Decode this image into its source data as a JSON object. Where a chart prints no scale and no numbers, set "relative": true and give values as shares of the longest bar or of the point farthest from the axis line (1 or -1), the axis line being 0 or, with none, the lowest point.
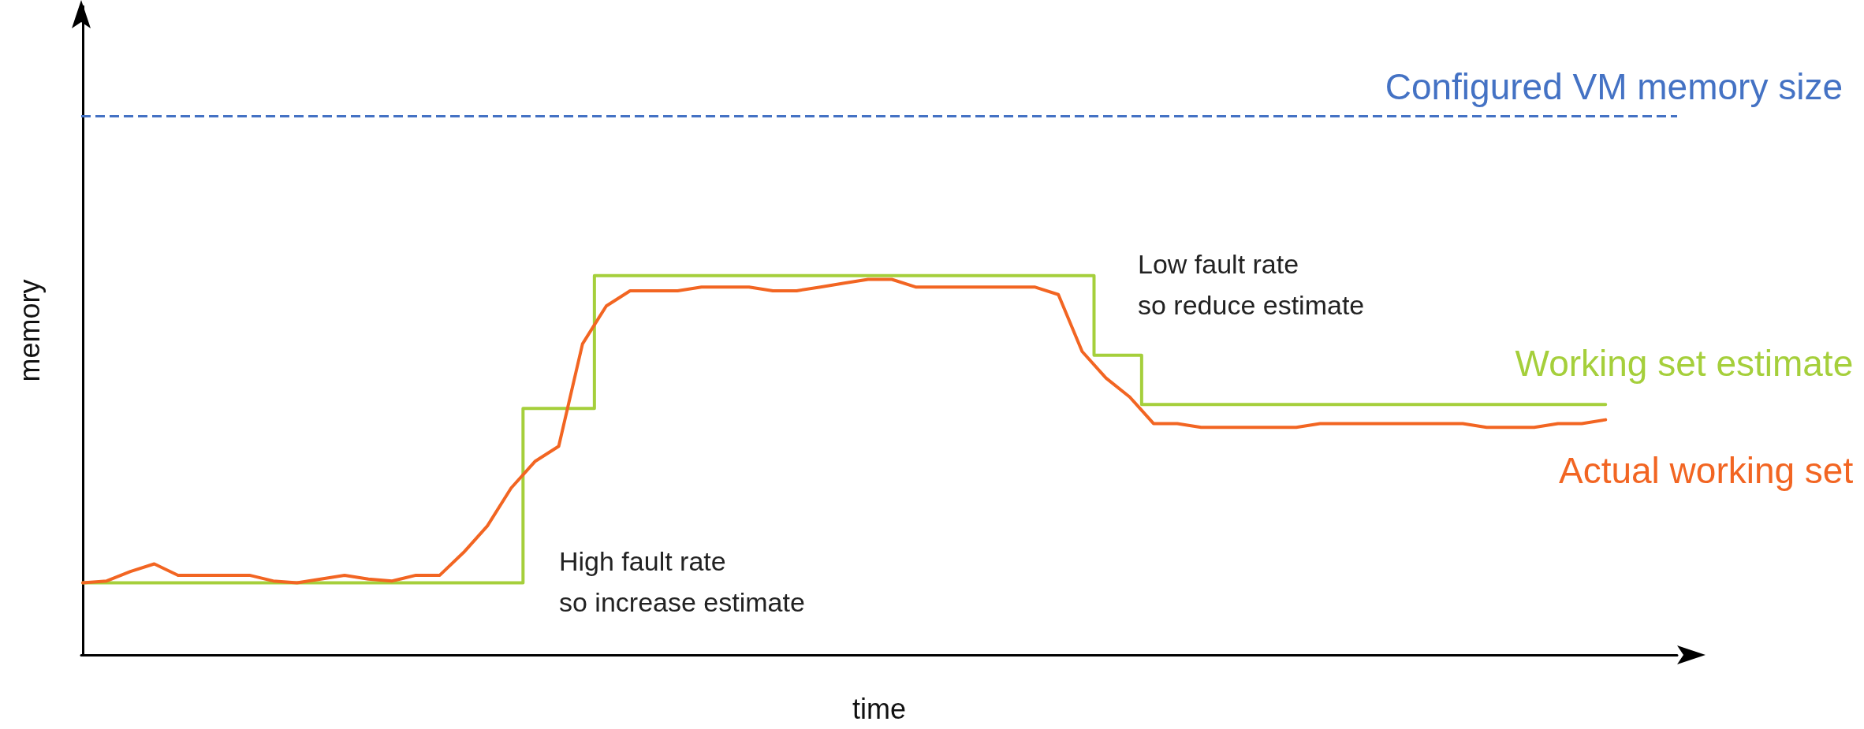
{
  "chart_data": {
    "type": "line",
    "relative": true,
    "xlabel": "time",
    "ylabel": "memory",
    "legend": false,
    "marker": "none",
    "grid": false,
    "categories": [
      null,
      null,
      null,
      null,
      null,
      null,
      null,
      null,
      null,
      null,
      null,
      null,
      null,
      null,
      null,
      null,
      null,
      null,
      null,
      null,
      null,
      null,
      null,
      null,
      null,
      null,
      null,
      null,
      null,
      null,
      null,
      null,
      null,
      null,
      null,
      null,
      null,
      null,
      null,
      null,
      null,
      null,
      null,
      null,
      null,
      null,
      null,
      null,
      null,
      null,
      null,
      null,
      null,
      null,
      null,
      null,
      null,
      null,
      null,
      null,
      null,
      null,
      null,
      null,
      null
    ],
    "series": [
      {
        "name": "Working set estimate",
        "type": "step",
        "color": "#a5cf3b",
        "line_style": "solid",
        "values": [
          0.19,
          0.19,
          0.19,
          0.19,
          0.19,
          0.19,
          0.19,
          0.19,
          0.19,
          0.19,
          0.19,
          0.19,
          0.19,
          0.19,
          0.19,
          0.19,
          0.19,
          0.19,
          0.19,
          0.65,
          0.65,
          0.65,
          1.0,
          1.0,
          1.0,
          1.0,
          1.0,
          1.0,
          1.0,
          1.0,
          1.0,
          1.0,
          1.0,
          1.0,
          1.0,
          1.0,
          1.0,
          1.0,
          1.0,
          1.0,
          1.0,
          1.0,
          1.0,
          0.79,
          0.79,
          0.66,
          0.66,
          0.66,
          0.66,
          0.66,
          0.66,
          0.66,
          0.66,
          0.66,
          0.66,
          0.66,
          0.66,
          0.66,
          0.66,
          0.66,
          0.66,
          0.66,
          0.66,
          0.66,
          0.66
        ]
      },
      {
        "name": "Actual working set",
        "color": "#f26522",
        "line_style": "solid",
        "values": [
          0.19,
          0.195,
          0.22,
          0.24,
          0.21,
          0.21,
          0.21,
          0.21,
          0.195,
          0.19,
          0.2,
          0.21,
          0.2,
          0.195,
          0.21,
          0.21,
          0.27,
          0.34,
          0.44,
          0.51,
          0.55,
          0.82,
          0.92,
          0.96,
          0.96,
          0.96,
          0.97,
          0.97,
          0.97,
          0.96,
          0.96,
          0.97,
          0.98,
          0.99,
          0.99,
          0.97,
          0.97,
          0.97,
          0.97,
          0.97,
          0.97,
          0.95,
          0.8,
          0.73,
          0.68,
          0.61,
          0.61,
          0.6,
          0.6,
          0.6,
          0.6,
          0.6,
          0.61,
          0.61,
          0.61,
          0.61,
          0.61,
          0.61,
          0.61,
          0.6,
          0.6,
          0.6,
          0.61,
          0.61,
          0.62
        ]
      }
    ],
    "ref_lines": [
      {
        "axis": "y",
        "value": 1.42,
        "label": "Configured VM memory size",
        "color": "#4472c4",
        "line_style": "dashed"
      }
    ],
    "annotations": [
      "High fault rate\nso increase estimate",
      "Low fault rate\nso reduce estimate"
    ]
  }
}
